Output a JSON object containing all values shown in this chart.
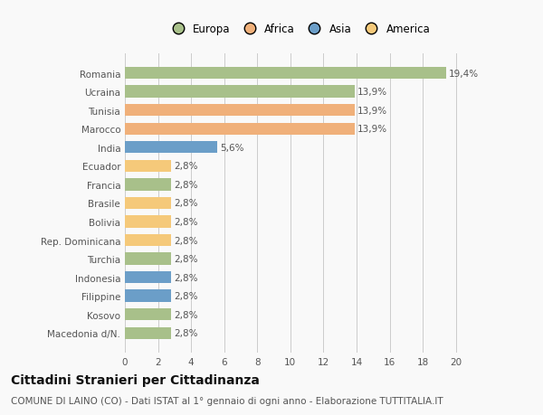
{
  "categories": [
    "Macedonia d/N.",
    "Kosovo",
    "Filippine",
    "Indonesia",
    "Turchia",
    "Rep. Dominicana",
    "Bolivia",
    "Brasile",
    "Francia",
    "Ecuador",
    "India",
    "Marocco",
    "Tunisia",
    "Ucraina",
    "Romania"
  ],
  "values": [
    2.8,
    2.8,
    2.8,
    2.8,
    2.8,
    2.8,
    2.8,
    2.8,
    2.8,
    2.8,
    5.6,
    13.9,
    13.9,
    13.9,
    19.4
  ],
  "colors": [
    "#a8c08a",
    "#a8c08a",
    "#6b9ec8",
    "#6b9ec8",
    "#a8c08a",
    "#f5c97a",
    "#f5c97a",
    "#f5c97a",
    "#a8c08a",
    "#f5c97a",
    "#6b9ec8",
    "#f0b07a",
    "#f0b07a",
    "#a8c08a",
    "#a8c08a"
  ],
  "labels": [
    "2,8%",
    "2,8%",
    "2,8%",
    "2,8%",
    "2,8%",
    "2,8%",
    "2,8%",
    "2,8%",
    "2,8%",
    "2,8%",
    "5,6%",
    "13,9%",
    "13,9%",
    "13,9%",
    "19,4%"
  ],
  "legend": {
    "Europa": "#a8c08a",
    "Africa": "#f0b07a",
    "Asia": "#6b9ec8",
    "America": "#f5c97a"
  },
  "title": "Cittadini Stranieri per Cittadinanza",
  "subtitle": "COMUNE DI LAINO (CO) - Dati ISTAT al 1° gennaio di ogni anno - Elaborazione TUTTITALIA.IT",
  "xlim": [
    0,
    21
  ],
  "xticks": [
    0,
    2,
    4,
    6,
    8,
    10,
    12,
    14,
    16,
    18,
    20
  ],
  "background_color": "#f9f9f9",
  "bar_height": 0.65,
  "title_fontsize": 10,
  "subtitle_fontsize": 7.5,
  "label_fontsize": 7.5,
  "tick_fontsize": 7.5,
  "legend_fontsize": 8.5
}
